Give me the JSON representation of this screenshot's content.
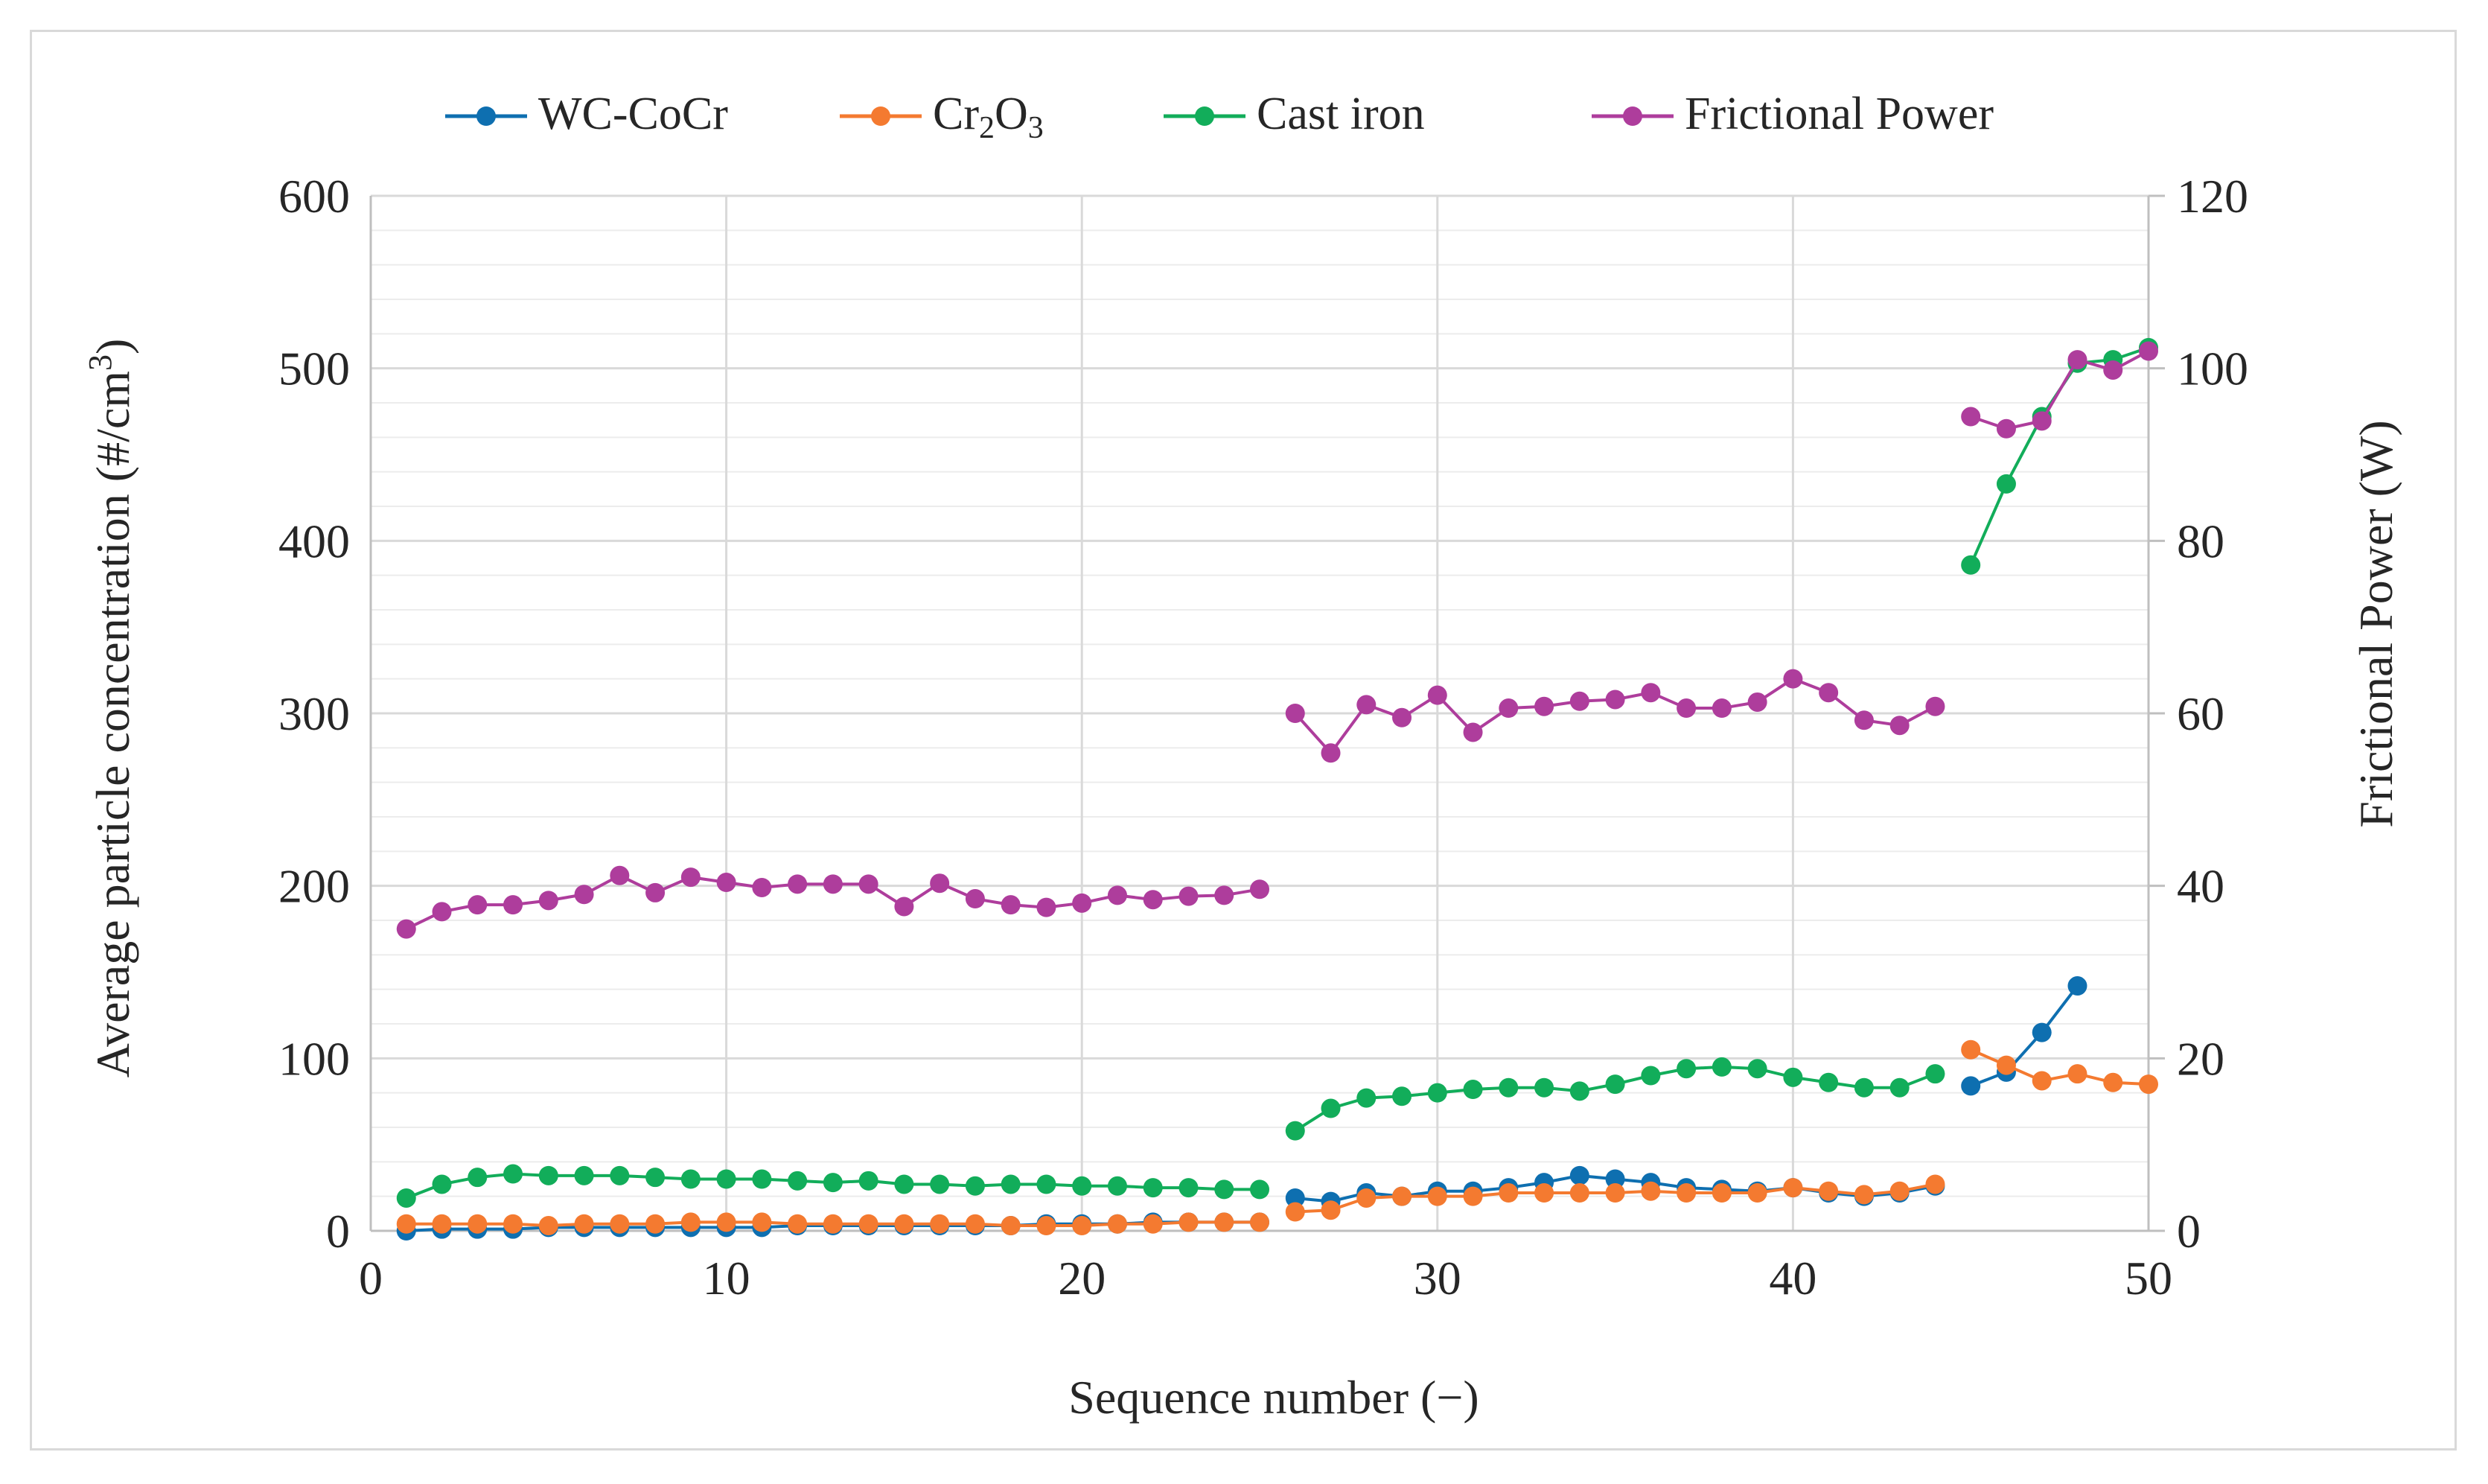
{
  "chart_data": {
    "type": "line",
    "xlabel": "Sequence number (−)",
    "ylabel_left": "Average particle concentration (#/cm",
    "ylabel_left_sup": "3",
    "ylabel_left_close": ")",
    "ylabel_right": "Frictional Power (W)",
    "xlim": [
      0,
      50
    ],
    "ylim_left": [
      0,
      600
    ],
    "ylim_right": [
      0,
      120
    ],
    "x_ticks": [
      0,
      10,
      20,
      30,
      40,
      50
    ],
    "y_left_ticks": [
      0,
      100,
      200,
      300,
      400,
      500,
      600
    ],
    "y_right_ticks": [
      0,
      20,
      40,
      60,
      80,
      100,
      120
    ],
    "grid": true,
    "legend_position": "top",
    "series": [
      {
        "name": "WC-CoCr",
        "color": "#0e6fb0",
        "axis": "left",
        "segments": [
          {
            "x": [
              1,
              2,
              3,
              4,
              5,
              6,
              7,
              8,
              9,
              10,
              11,
              12,
              13,
              14,
              15,
              16,
              17,
              18,
              19,
              20,
              21,
              22,
              23,
              24,
              25
            ],
            "y": [
              0,
              1,
              1,
              1,
              2,
              2,
              2,
              2,
              2,
              2,
              2,
              3,
              3,
              3,
              3,
              3,
              3,
              3,
              4,
              4,
              4,
              5,
              5,
              5,
              5
            ]
          },
          {
            "x": [
              26,
              27,
              28,
              29,
              30,
              31,
              32,
              33,
              34,
              35,
              36,
              37,
              38,
              39,
              40,
              41,
              42,
              43,
              44
            ],
            "y": [
              19,
              17,
              22,
              20,
              23,
              23,
              25,
              28,
              32,
              30,
              28,
              25,
              24,
              23,
              25,
              22,
              20,
              22,
              26
            ]
          },
          {
            "x": [
              45,
              46,
              47,
              48
            ],
            "y": [
              84,
              92,
              115,
              142
            ]
          }
        ]
      },
      {
        "name": "Cr",
        "name_sub": "2",
        "name_rest": "O",
        "name_sub2": "3",
        "color": "#f47a30",
        "axis": "left",
        "segments": [
          {
            "x": [
              1,
              2,
              3,
              4,
              5,
              6,
              7,
              8,
              9,
              10,
              11,
              12,
              13,
              14,
              15,
              16,
              17,
              18,
              19,
              20,
              21,
              22,
              23,
              24,
              25
            ],
            "y": [
              4,
              4,
              4,
              4,
              3,
              4,
              4,
              4,
              5,
              5,
              5,
              4,
              4,
              4,
              4,
              4,
              4,
              3,
              3,
              3,
              4,
              4,
              5,
              5,
              5
            ]
          },
          {
            "x": [
              26,
              27,
              28,
              29,
              30,
              31,
              32,
              33,
              34,
              35,
              36,
              37,
              38,
              39,
              40,
              41,
              42,
              43,
              44
            ],
            "y": [
              11,
              12,
              19,
              20,
              20,
              20,
              22,
              22,
              22,
              22,
              23,
              22,
              22,
              22,
              25,
              23,
              21,
              23,
              27
            ]
          },
          {
            "x": [
              45,
              46,
              47,
              48,
              49,
              50
            ],
            "y": [
              105,
              96,
              87,
              91,
              86,
              85
            ]
          }
        ]
      },
      {
        "name": "Cast iron",
        "color": "#12ad5a",
        "axis": "left",
        "segments": [
          {
            "x": [
              1,
              2,
              3,
              4,
              5,
              6,
              7,
              8,
              9,
              10,
              11,
              12,
              13,
              14,
              15,
              16,
              17,
              18,
              19,
              20,
              21,
              22,
              23,
              24,
              25
            ],
            "y": [
              19,
              27,
              31,
              33,
              32,
              32,
              32,
              31,
              30,
              30,
              30,
              29,
              28,
              29,
              27,
              27,
              26,
              27,
              27,
              26,
              26,
              25,
              25,
              24,
              24
            ]
          },
          {
            "x": [
              26,
              27,
              28,
              29,
              30,
              31,
              32,
              33,
              34,
              35,
              36,
              37,
              38,
              39,
              40,
              41,
              42,
              43,
              44
            ],
            "y": [
              58,
              71,
              77,
              78,
              80,
              82,
              83,
              83,
              81,
              85,
              90,
              94,
              95,
              94,
              89,
              86,
              83,
              83,
              91
            ]
          },
          {
            "x": [
              45,
              46,
              47,
              48,
              49,
              50
            ],
            "y": [
              386,
              433,
              472,
              503,
              505,
              512
            ]
          }
        ]
      },
      {
        "name": "Frictional Power",
        "color": "#ae3d9c",
        "axis": "right",
        "segments": [
          {
            "x": [
              1,
              2,
              3,
              4,
              5,
              6,
              7,
              8,
              9,
              10,
              11,
              12,
              13,
              14,
              15,
              16,
              17,
              18,
              19,
              20,
              21,
              22,
              23,
              24,
              25
            ],
            "y": [
              35,
              37,
              37.8,
              37.8,
              38.3,
              39,
              41.2,
              39.2,
              41,
              40.4,
              39.8,
              40.2,
              40.2,
              40.2,
              37.6,
              40.3,
              38.5,
              37.8,
              37.5,
              38,
              38.9,
              38.4,
              38.8,
              38.9,
              39.6
            ]
          },
          {
            "x": [
              26,
              27,
              28,
              29,
              30,
              31,
              32,
              33,
              34,
              35,
              36,
              37,
              38,
              39,
              40,
              41,
              42,
              43,
              44
            ],
            "y": [
              60,
              55.4,
              61,
              59.5,
              62.1,
              57.8,
              60.6,
              60.8,
              61.4,
              61.6,
              62.4,
              60.6,
              60.6,
              61.3,
              64,
              62.4,
              59.2,
              58.6,
              60.8
            ]
          },
          {
            "x": [
              45,
              46,
              47,
              48,
              49,
              50
            ],
            "y": [
              94.4,
              93,
              93.9,
              101,
              99.8,
              102
            ]
          }
        ]
      }
    ]
  }
}
